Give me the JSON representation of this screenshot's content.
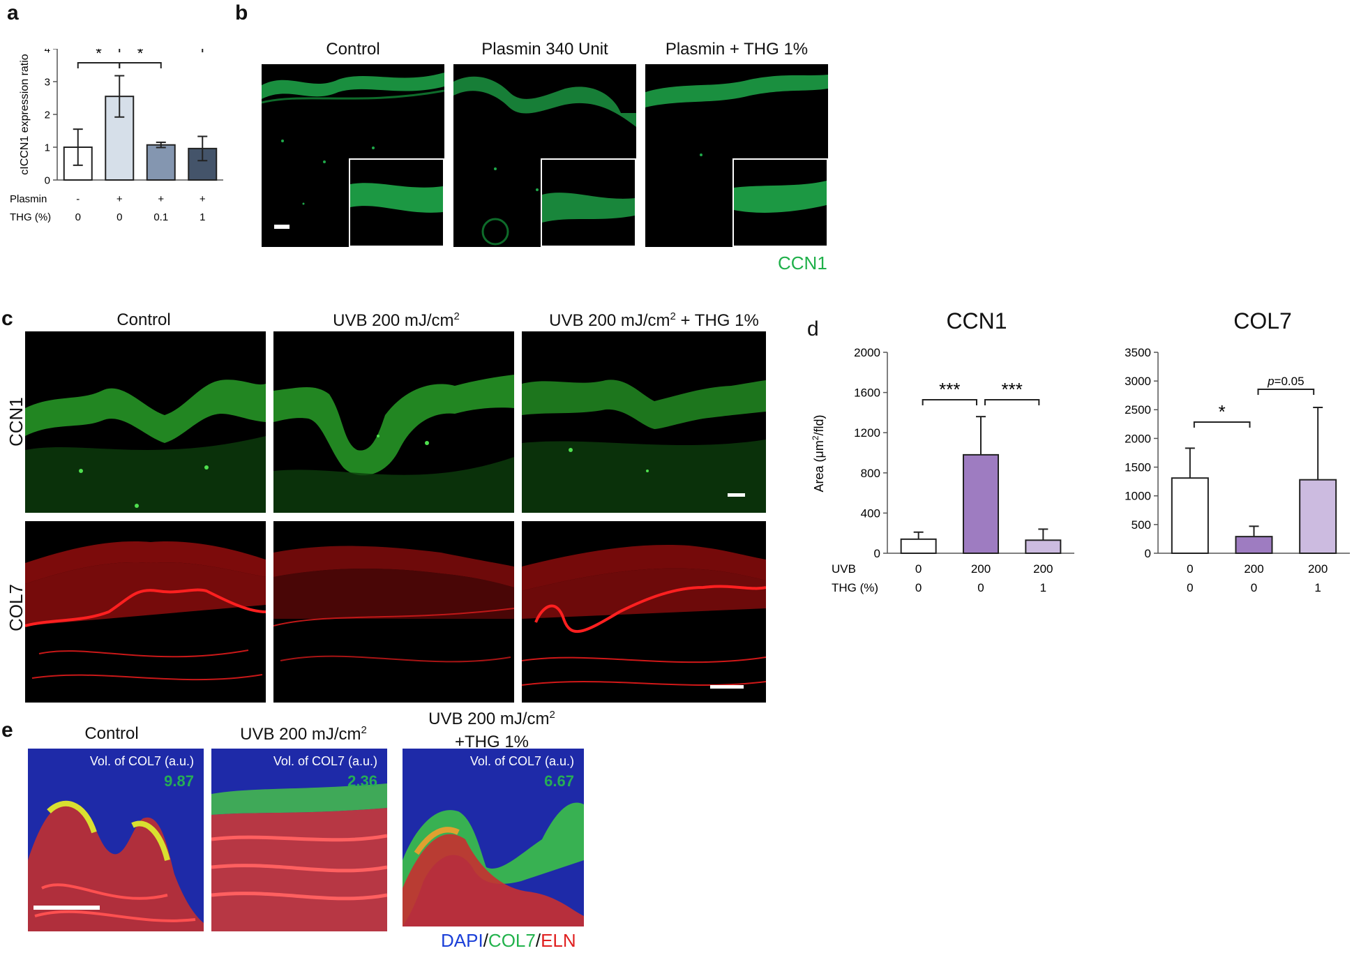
{
  "labels": {
    "a": "a",
    "b": "b",
    "c": "c",
    "d": "d",
    "e": "e"
  },
  "panel_b": {
    "titles": [
      "Control",
      "Plasmin 340 Unit",
      "Plasmin + THG 1%"
    ],
    "stain_label": "CCN1",
    "stain_color": "#1fb04a"
  },
  "panel_c": {
    "titles": [
      "Control",
      "UVB 200 mJ/cm",
      "UVB 200 mJ/cm"
    ],
    "superscript": "2",
    "title3_suffix": " + THG 1%",
    "row_labels": [
      "CCN1",
      "COL7"
    ],
    "row_colors": [
      "#2fbf2f",
      "#e01010"
    ]
  },
  "panel_e": {
    "titles": [
      "Control",
      "UVB 200 mJ/cm",
      "UVB 200 mJ/cm"
    ],
    "superscript": "2",
    "title3_line2": "+THG 1%",
    "vol_label": "Vol. of COL7 (a.u.)",
    "values": [
      "9.87",
      "2.36",
      "6.67"
    ],
    "legend": {
      "dapi": "DAPI",
      "sep1": "/",
      "col7": "COL7",
      "sep2": "/",
      "eln": "ELN"
    },
    "legend_colors": {
      "dapi": "#1a3fd8",
      "col7": "#22b24c",
      "eln": "#e02020"
    }
  },
  "chart_data": [
    {
      "id": "a",
      "type": "bar",
      "ylabel": "cICCN1 expression ratio",
      "ylim": [
        0,
        4
      ],
      "yticks": [
        "0",
        "1",
        "2",
        "3",
        "4"
      ],
      "row_labels": [
        "Plasmin",
        "THG (%)"
      ],
      "rows": [
        [
          "-",
          "+",
          "+",
          "+"
        ],
        [
          "0",
          "0",
          "0.1",
          "1"
        ]
      ],
      "values": [
        1.0,
        2.55,
        1.07,
        0.96
      ],
      "errors": [
        0.55,
        0.63,
        0.08,
        0.37
      ],
      "colors": [
        "#ffffff",
        "#d6dfe9",
        "#8496b0",
        "#44546a"
      ],
      "significance": [
        {
          "from": 0,
          "to": 1,
          "label": "*"
        },
        {
          "from": 1,
          "to": 2,
          "label": "*"
        },
        {
          "from": 1,
          "to": 3,
          "label": "*"
        }
      ]
    },
    {
      "id": "d-ccn1",
      "type": "bar",
      "title": "CCN1",
      "ylabel": "Area (μm",
      "ylabel_sup": "2",
      "ylabel_end": "/fld)",
      "ylim": [
        0,
        2000
      ],
      "yticks": [
        "0",
        "400",
        "800",
        "1200",
        "1600",
        "2000"
      ],
      "row_labels": [
        "UVB",
        "THG (%)"
      ],
      "rows": [
        [
          "0",
          "200",
          "200"
        ],
        [
          "0",
          "0",
          "1"
        ]
      ],
      "values": [
        140,
        980,
        130
      ],
      "errors": [
        70,
        380,
        110
      ],
      "colors": [
        "#ffffff",
        "#9e7cc1",
        "#ccbbe0"
      ],
      "significance": [
        {
          "from": 0,
          "to": 1,
          "label": "***"
        },
        {
          "from": 1,
          "to": 2,
          "label": "***"
        }
      ]
    },
    {
      "id": "d-col7",
      "type": "bar",
      "title": "COL7",
      "ylim": [
        0,
        3500
      ],
      "yticks": [
        "0",
        "500",
        "1000",
        "1500",
        "2000",
        "2500",
        "3000",
        "3500"
      ],
      "rows": [
        [
          "0",
          "200",
          "200"
        ],
        [
          "0",
          "0",
          "1"
        ]
      ],
      "values": [
        1310,
        290,
        1280
      ],
      "errors": [
        520,
        180,
        1260
      ],
      "colors": [
        "#ffffff",
        "#9e7cc1",
        "#ccbbe0"
      ],
      "significance": [
        {
          "from": 0,
          "to": 1,
          "label": "*"
        },
        {
          "from": 1,
          "to": 2,
          "label": "=0.05",
          "label_italic": "p"
        }
      ]
    }
  ]
}
